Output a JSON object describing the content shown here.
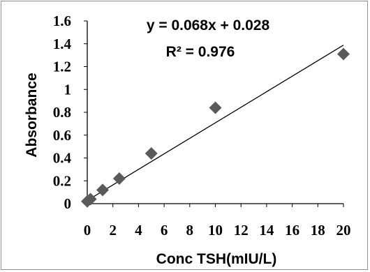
{
  "chart_data": {
    "type": "scatter",
    "title": "",
    "xlabel": "Conc TSH(mIU/L)",
    "ylabel": "Absorbance",
    "xlim": [
      0,
      20
    ],
    "ylim": [
      0,
      1.6
    ],
    "x_ticks": [
      0,
      2,
      4,
      6,
      8,
      10,
      12,
      14,
      16,
      18,
      20
    ],
    "y_ticks": [
      0,
      0.2,
      0.4,
      0.6,
      0.8,
      1,
      1.2,
      1.4,
      1.6
    ],
    "x_tick_labels": [
      "0",
      "2",
      "4",
      "6",
      "8",
      "10",
      "12",
      "14",
      "16",
      "18",
      "20"
    ],
    "y_tick_labels": [
      "0",
      "0.2",
      "0.4",
      "0.6",
      "0.8",
      "1",
      "1.2",
      "1.4",
      "1.6"
    ],
    "grid": false,
    "marker": "diamond",
    "marker_color": "#595959",
    "series": [
      {
        "x": [
          0,
          0.25,
          1.2,
          2.5,
          5,
          10,
          20
        ],
        "y": [
          0.02,
          0.04,
          0.12,
          0.22,
          0.44,
          0.84,
          1.31
        ]
      }
    ],
    "trendline": {
      "type": "linear",
      "slope": 0.068,
      "intercept": 0.028,
      "x_range": [
        0,
        20
      ],
      "color": "#000000"
    },
    "annotations": {
      "equation": "y = 0.068x + 0.028",
      "r_squared": "R² = 0.976"
    }
  }
}
